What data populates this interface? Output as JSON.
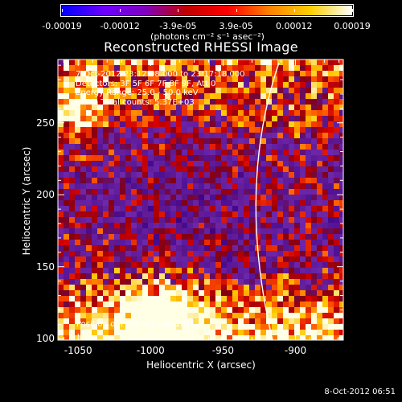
{
  "colorbar": {
    "ticks": [
      "-0.00019",
      "-0.00012",
      "-3.9e-05",
      "3.9e-05",
      "0.00012",
      "0.00019"
    ],
    "units": "(photons cm⁻² s⁻¹ asec⁻²)",
    "colors": [
      "#0000ff",
      "#6a00ff",
      "#7f00bf",
      "#bf0000",
      "#ff0000",
      "#ff8000",
      "#ffd000",
      "#ffffff"
    ]
  },
  "plot": {
    "title": "Reconstructed RHESSI Image",
    "info_lines": [
      "7-Oct-2012 23:12:08.000 to 23:17:18.000",
      "Detectors: 3F 5F 6F 7F 8F 9F, Att 0",
      "Energy Range: 25.0 - 50.0 keV",
      "Clean     Total counts: 5.37E+03"
    ],
    "peak_text": "Position of Peak = [-998,281]",
    "x_axis_title": "Heliocentric X (arcsec)",
    "y_axis_title": "Heliocentric Y (arcsec)",
    "x_ticks": [
      "-1050",
      "-1000",
      "-950",
      "-900"
    ],
    "y_ticks": [
      "100",
      "150",
      "200",
      "250"
    ],
    "x_range": [
      -1064,
      -867
    ],
    "y_range": [
      99,
      294
    ]
  },
  "timestamp": "8-Oct-2012 06:51"
}
